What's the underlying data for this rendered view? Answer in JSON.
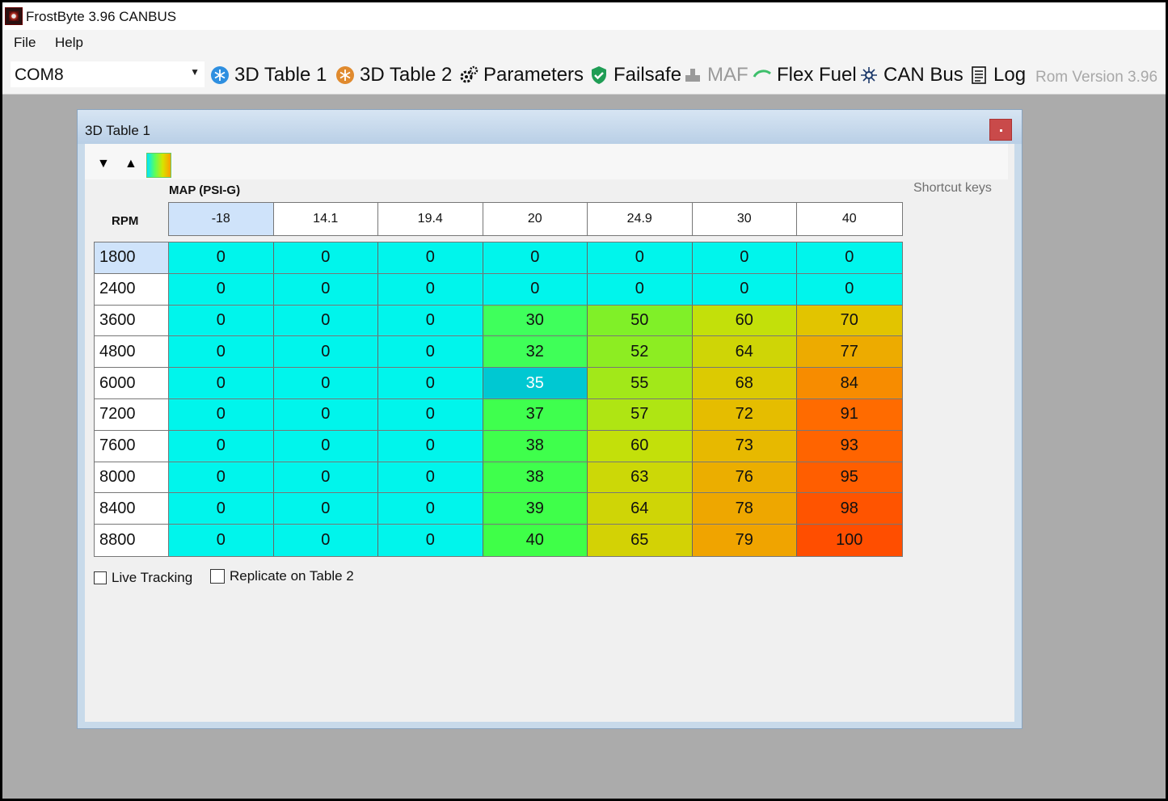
{
  "window": {
    "title": "FrostByte 3.96 CANBUS"
  },
  "menu": {
    "file": "File",
    "help": "Help"
  },
  "toolbar": {
    "port": "COM8",
    "items": [
      {
        "label": "3D Table 1",
        "icon": "snowflake-blue-icon"
      },
      {
        "label": "3D Table 2",
        "icon": "snowflake-orange-icon"
      },
      {
        "label": "Parameters",
        "icon": "gears-icon"
      },
      {
        "label": "Failsafe",
        "icon": "shield-check-icon"
      },
      {
        "label": "MAF",
        "icon": "maf-sensor-icon"
      },
      {
        "label": "Flex Fuel",
        "icon": "leaf-icon"
      },
      {
        "label": "CAN Bus",
        "icon": "network-icon"
      },
      {
        "label": "Log",
        "icon": "log-list-icon"
      }
    ],
    "rom_version": "Rom Version 3.96"
  },
  "child": {
    "title": "3D Table 1",
    "shortcut_keys": "Shortcut keys",
    "map_label": "MAP (PSI-G)",
    "rpm_label": "RPM",
    "columns": [
      "-18",
      "14.1",
      "19.4",
      "20",
      "24.9",
      "30",
      "40"
    ],
    "rows": [
      {
        "rpm": "1800",
        "values": [
          "0",
          "0",
          "0",
          "0",
          "0",
          "0",
          "0"
        ]
      },
      {
        "rpm": "2400",
        "values": [
          "0",
          "0",
          "0",
          "0",
          "0",
          "0",
          "0"
        ]
      },
      {
        "rpm": "3600",
        "values": [
          "0",
          "0",
          "0",
          "30",
          "50",
          "60",
          "70"
        ]
      },
      {
        "rpm": "4800",
        "values": [
          "0",
          "0",
          "0",
          "32",
          "52",
          "64",
          "77"
        ]
      },
      {
        "rpm": "6000",
        "values": [
          "0",
          "0",
          "0",
          "35",
          "55",
          "68",
          "84"
        ]
      },
      {
        "rpm": "7200",
        "values": [
          "0",
          "0",
          "0",
          "37",
          "57",
          "72",
          "91"
        ]
      },
      {
        "rpm": "7600",
        "values": [
          "0",
          "0",
          "0",
          "38",
          "60",
          "73",
          "93"
        ]
      },
      {
        "rpm": "8000",
        "values": [
          "0",
          "0",
          "0",
          "38",
          "63",
          "76",
          "95"
        ]
      },
      {
        "rpm": "8400",
        "values": [
          "0",
          "0",
          "0",
          "39",
          "64",
          "78",
          "98"
        ]
      },
      {
        "rpm": "8800",
        "values": [
          "0",
          "0",
          "0",
          "40",
          "65",
          "79",
          "100"
        ]
      }
    ],
    "selected_cell": {
      "row": 4,
      "col": 3
    },
    "live_tracking": "Live Tracking",
    "replicate": "Replicate on Table 2"
  }
}
